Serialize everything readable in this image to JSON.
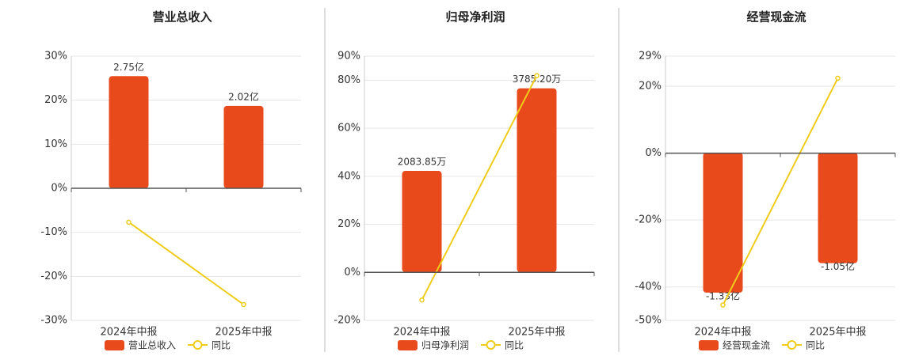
{
  "chart_data": [
    {
      "type": "bar-line",
      "title": "营业总收入",
      "categories": [
        "2024年中报",
        "2025年中报"
      ],
      "series": [
        {
          "name": "营业总收入",
          "type": "bar",
          "axis": "y2",
          "color": "#e84a1c",
          "values": [
            2.75,
            2.02
          ],
          "value_labels": [
            "2.75亿",
            "2.02亿"
          ]
        },
        {
          "name": "同比",
          "type": "line",
          "color": "#f0cc1a",
          "values": [
            -7.7,
            -26.4
          ]
        }
      ],
      "ylim": [
        -30,
        30
      ],
      "yticks": [
        {
          "value": -30,
          "label": "-30%"
        },
        {
          "value": -20,
          "label": "-20%"
        },
        {
          "value": -10,
          "label": "-10%"
        },
        {
          "value": 0,
          "label": "0%"
        },
        {
          "value": 10,
          "label": "10%"
        },
        {
          "value": 20,
          "label": "20%"
        },
        {
          "value": 30,
          "label": "30%"
        }
      ],
      "y2lim": [
        -3.24,
        3.24
      ],
      "grid": true
    },
    {
      "type": "bar-line",
      "title": "归母净利润",
      "categories": [
        "2024年中报",
        "2025年中报"
      ],
      "series": [
        {
          "name": "归母净利润",
          "type": "bar",
          "axis": "y2",
          "color": "#e84a1c",
          "values": [
            2083.85,
            3785.2
          ],
          "value_labels": [
            "2083.85万",
            "3785.20万"
          ]
        },
        {
          "name": "同比",
          "type": "line",
          "color": "#f0cc1a",
          "values": [
            -11.5,
            81.9
          ]
        }
      ],
      "ylim": [
        -20,
        90
      ],
      "yticks": [
        {
          "value": -20,
          "label": "-20%"
        },
        {
          "value": 0,
          "label": "0%"
        },
        {
          "value": 20,
          "label": "20%"
        },
        {
          "value": 40,
          "label": "40%"
        },
        {
          "value": 60,
          "label": "60%"
        },
        {
          "value": 80,
          "label": "80%"
        },
        {
          "value": 90,
          "label": "90%"
        }
      ],
      "y2lim": [
        -993,
        4446
      ],
      "grid": true
    },
    {
      "type": "bar-line",
      "title": "经营现金流",
      "categories": [
        "2024年中报",
        "2025年中报"
      ],
      "series": [
        {
          "name": "经营现金流",
          "type": "bar",
          "axis": "y2",
          "color": "#e84a1c",
          "values": [
            -1.33,
            -1.05
          ],
          "value_labels": [
            "-1.33亿",
            "-1.05亿"
          ]
        },
        {
          "name": "同比",
          "type": "line",
          "color": "#f0cc1a",
          "values": [
            -45.4,
            22.4
          ]
        }
      ],
      "ylim": [
        -50,
        29
      ],
      "yticks": [
        {
          "value": -50,
          "label": "-50%"
        },
        {
          "value": -40,
          "label": "-40%"
        },
        {
          "value": -20,
          "label": "-20%"
        },
        {
          "value": 0,
          "label": "0%"
        },
        {
          "value": 20,
          "label": "20%"
        },
        {
          "value": 29,
          "label": "29%"
        }
      ],
      "y2lim": [
        -1.594,
        0.917
      ],
      "grid": true
    }
  ]
}
